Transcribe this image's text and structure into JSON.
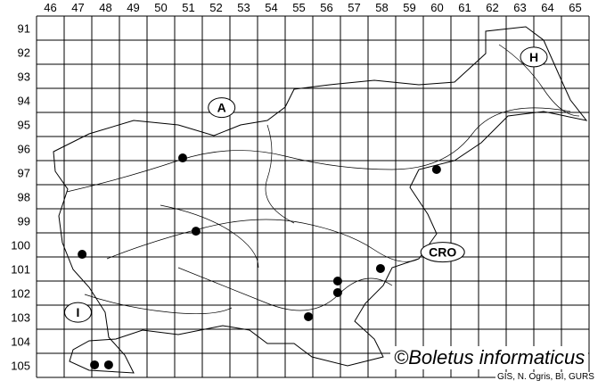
{
  "map": {
    "columns": [
      "46",
      "47",
      "48",
      "49",
      "50",
      "51",
      "52",
      "53",
      "54",
      "55",
      "56",
      "57",
      "58",
      "59",
      "60",
      "61",
      "62",
      "63",
      "64",
      "65"
    ],
    "rows": [
      "91",
      "92",
      "93",
      "94",
      "95",
      "96",
      "97",
      "98",
      "99",
      "100",
      "101",
      "102",
      "103",
      "104",
      "105"
    ],
    "neighbour_labels": [
      {
        "label": "A",
        "col": 52.7,
        "row": 94.8
      },
      {
        "label": "H",
        "col": 64.0,
        "row": 92.7
      },
      {
        "label": "CRO",
        "col": 60.7,
        "row": 100.8
      },
      {
        "label": "I",
        "col": 47.5,
        "row": 103.3
      }
    ],
    "occurrences": [
      {
        "col": 51.29,
        "row": 96.89
      },
      {
        "col": 60.48,
        "row": 97.37
      },
      {
        "col": 51.77,
        "row": 99.93
      },
      {
        "col": 47.65,
        "row": 100.89
      },
      {
        "col": 58.45,
        "row": 101.48
      },
      {
        "col": 56.9,
        "row": 102.0
      },
      {
        "col": 56.9,
        "row": 102.48
      },
      {
        "col": 55.84,
        "row": 103.48
      },
      {
        "col": 48.1,
        "row": 105.48
      },
      {
        "col": 48.61,
        "row": 105.48
      }
    ],
    "marker_color": "#000000",
    "line_color": "#000000"
  },
  "credit": "©Boletus informaticus",
  "source": "GIS, N. Ogris, BI, GURS"
}
